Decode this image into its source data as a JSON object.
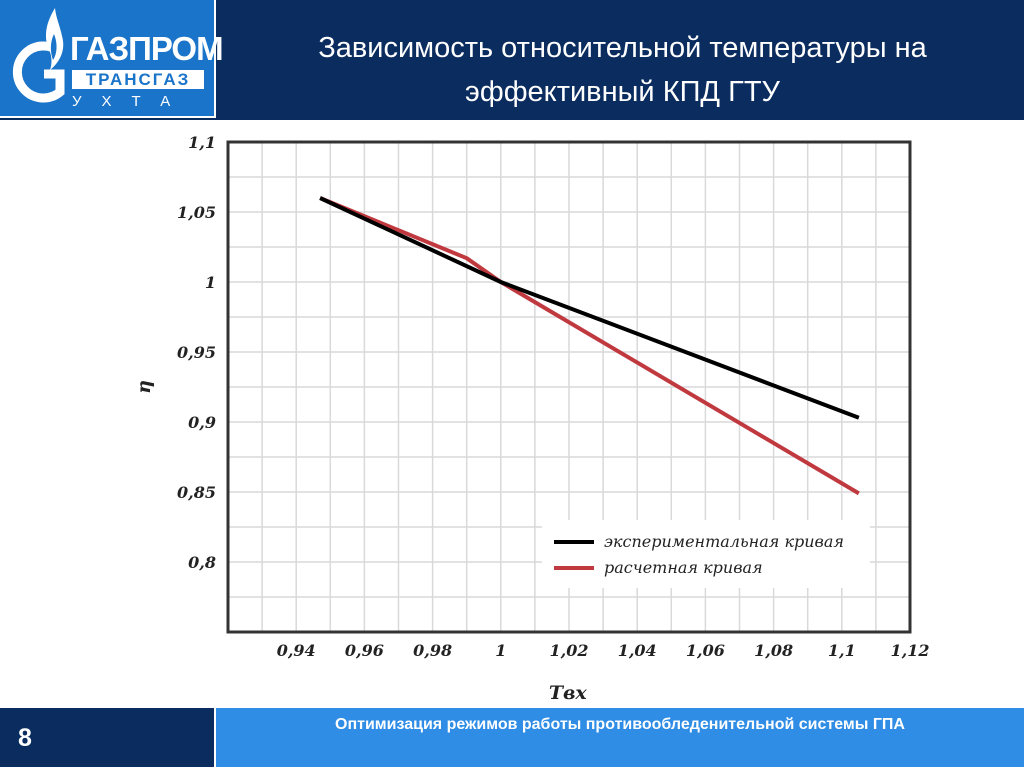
{
  "header": {
    "title_line1": "Зависимость относительной температуры на",
    "title_line2": "эффективный КПД ГТУ",
    "logo": {
      "word1": "ГАЗПРОМ",
      "word2": "ТРАНСГАЗ",
      "word3": "УХТА"
    }
  },
  "footer": {
    "page_number": "8",
    "text": "Оптимизация режимов работы противообледенительной системы ГПА"
  },
  "colors": {
    "header_bg": "#0a2c5e",
    "logo_bg": "#1a74c9",
    "footer_bg": "#2f8de6",
    "series_experimental": "#000000",
    "series_calculated": "#c0393f"
  },
  "chart_data": {
    "type": "line",
    "title": "",
    "xlabel": "Tвх",
    "ylabel": "η",
    "xlim": [
      0.92,
      1.12
    ],
    "ylim": [
      0.75,
      1.1
    ],
    "x_ticks": [
      0.94,
      0.96,
      0.98,
      1,
      1.02,
      1.04,
      1.06,
      1.08,
      1.1,
      1.12
    ],
    "x_tick_labels": [
      "0,94",
      "0,96",
      "0,98",
      "1",
      "1,02",
      "1,04",
      "1,06",
      "1,08",
      "1,1",
      "1,12"
    ],
    "y_ticks": [
      0.8,
      0.85,
      0.9,
      0.95,
      1,
      1.05,
      1.1
    ],
    "y_tick_labels": [
      "0,8",
      "0,85",
      "0,9",
      "0,95",
      "1",
      "1,05",
      "1,1"
    ],
    "grid": true,
    "legend_position": "bottom-right",
    "series": [
      {
        "name": "экспериментальная кривая",
        "color": "#000000",
        "x": [
          0.947,
          1.0,
          1.105
        ],
        "y": [
          1.06,
          1.0,
          0.903
        ]
      },
      {
        "name": "расчетная кривая",
        "color": "#c0393f",
        "x": [
          0.947,
          0.99,
          1.0,
          1.105
        ],
        "y": [
          1.06,
          1.017,
          1.0,
          0.849
        ]
      }
    ]
  }
}
